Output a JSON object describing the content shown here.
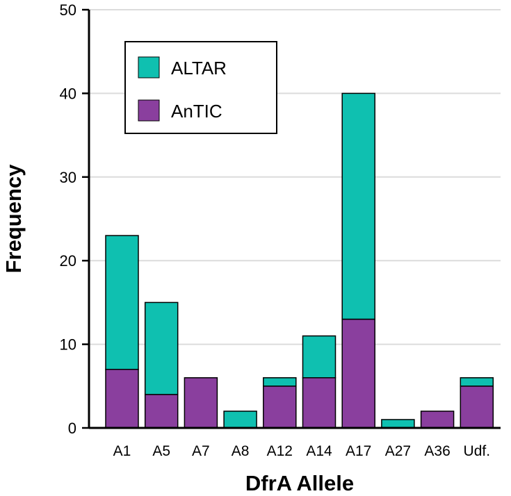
{
  "chart_data": {
    "type": "bar",
    "stacked": true,
    "title": "",
    "xlabel": "DfrA Allele",
    "ylabel": "Frequency",
    "ylim": [
      0,
      50
    ],
    "yticks": [
      0,
      10,
      20,
      30,
      40,
      50
    ],
    "grid": true,
    "legend_position": "top-left",
    "categories": [
      "A1",
      "A5",
      "A7",
      "A8",
      "A12",
      "A14",
      "A17",
      "A27",
      "A36",
      "Udf."
    ],
    "series": [
      {
        "name": "AnTIC",
        "color": "#8a3f9e",
        "values": [
          7,
          4,
          6,
          0,
          5,
          6,
          13,
          0,
          2,
          5
        ]
      },
      {
        "name": "ALTAR",
        "color": "#0fc0b0",
        "values": [
          16,
          11,
          0,
          2,
          1,
          5,
          27,
          1,
          0,
          1
        ]
      }
    ],
    "legend_order": [
      "ALTAR",
      "AnTIC"
    ]
  }
}
